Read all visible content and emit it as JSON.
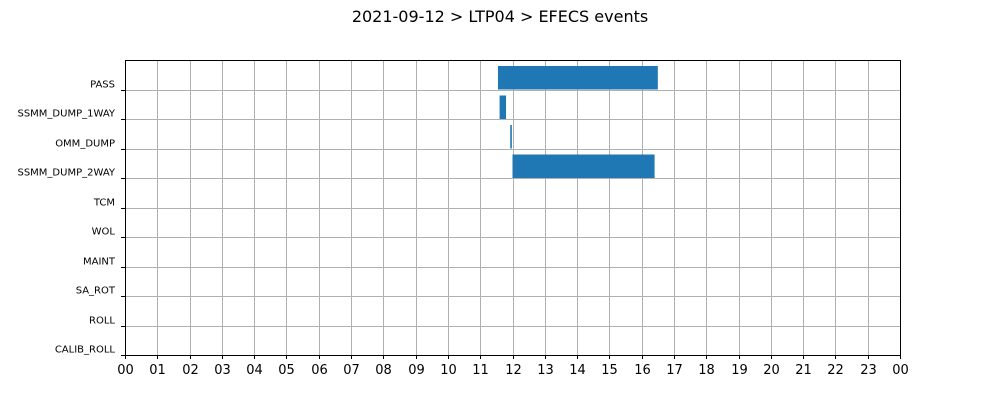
{
  "chart_data": {
    "type": "bar",
    "orientation": "horizontal-timeline",
    "title": "2021-09-12 > LTP04 > EFECS events",
    "categories": [
      "PASS",
      "SSMM_DUMP_1WAY",
      "OMM_DUMP",
      "SSMM_DUMP_2WAY",
      "TCM",
      "WOL",
      "MAINT",
      "SA_ROT",
      "ROLL",
      "CALIB_ROLL"
    ],
    "x_tick_labels": [
      "00",
      "01",
      "02",
      "03",
      "04",
      "05",
      "06",
      "07",
      "08",
      "09",
      "10",
      "11",
      "12",
      "13",
      "14",
      "15",
      "16",
      "17",
      "18",
      "19",
      "20",
      "21",
      "22",
      "23",
      "00"
    ],
    "xlim": [
      0,
      24
    ],
    "x_unit": "hour of day",
    "grid": true,
    "series": [
      {
        "color": "#1f77b4",
        "intervals": [
          {
            "category": "PASS",
            "start": 11.55,
            "end": 16.5
          },
          {
            "category": "SSMM_DUMP_1WAY",
            "start": 11.6,
            "end": 11.8
          },
          {
            "category": "OMM_DUMP",
            "start": 11.93,
            "end": 11.98
          },
          {
            "category": "SSMM_DUMP_2WAY",
            "start": 12.0,
            "end": 16.4
          }
        ]
      }
    ]
  }
}
